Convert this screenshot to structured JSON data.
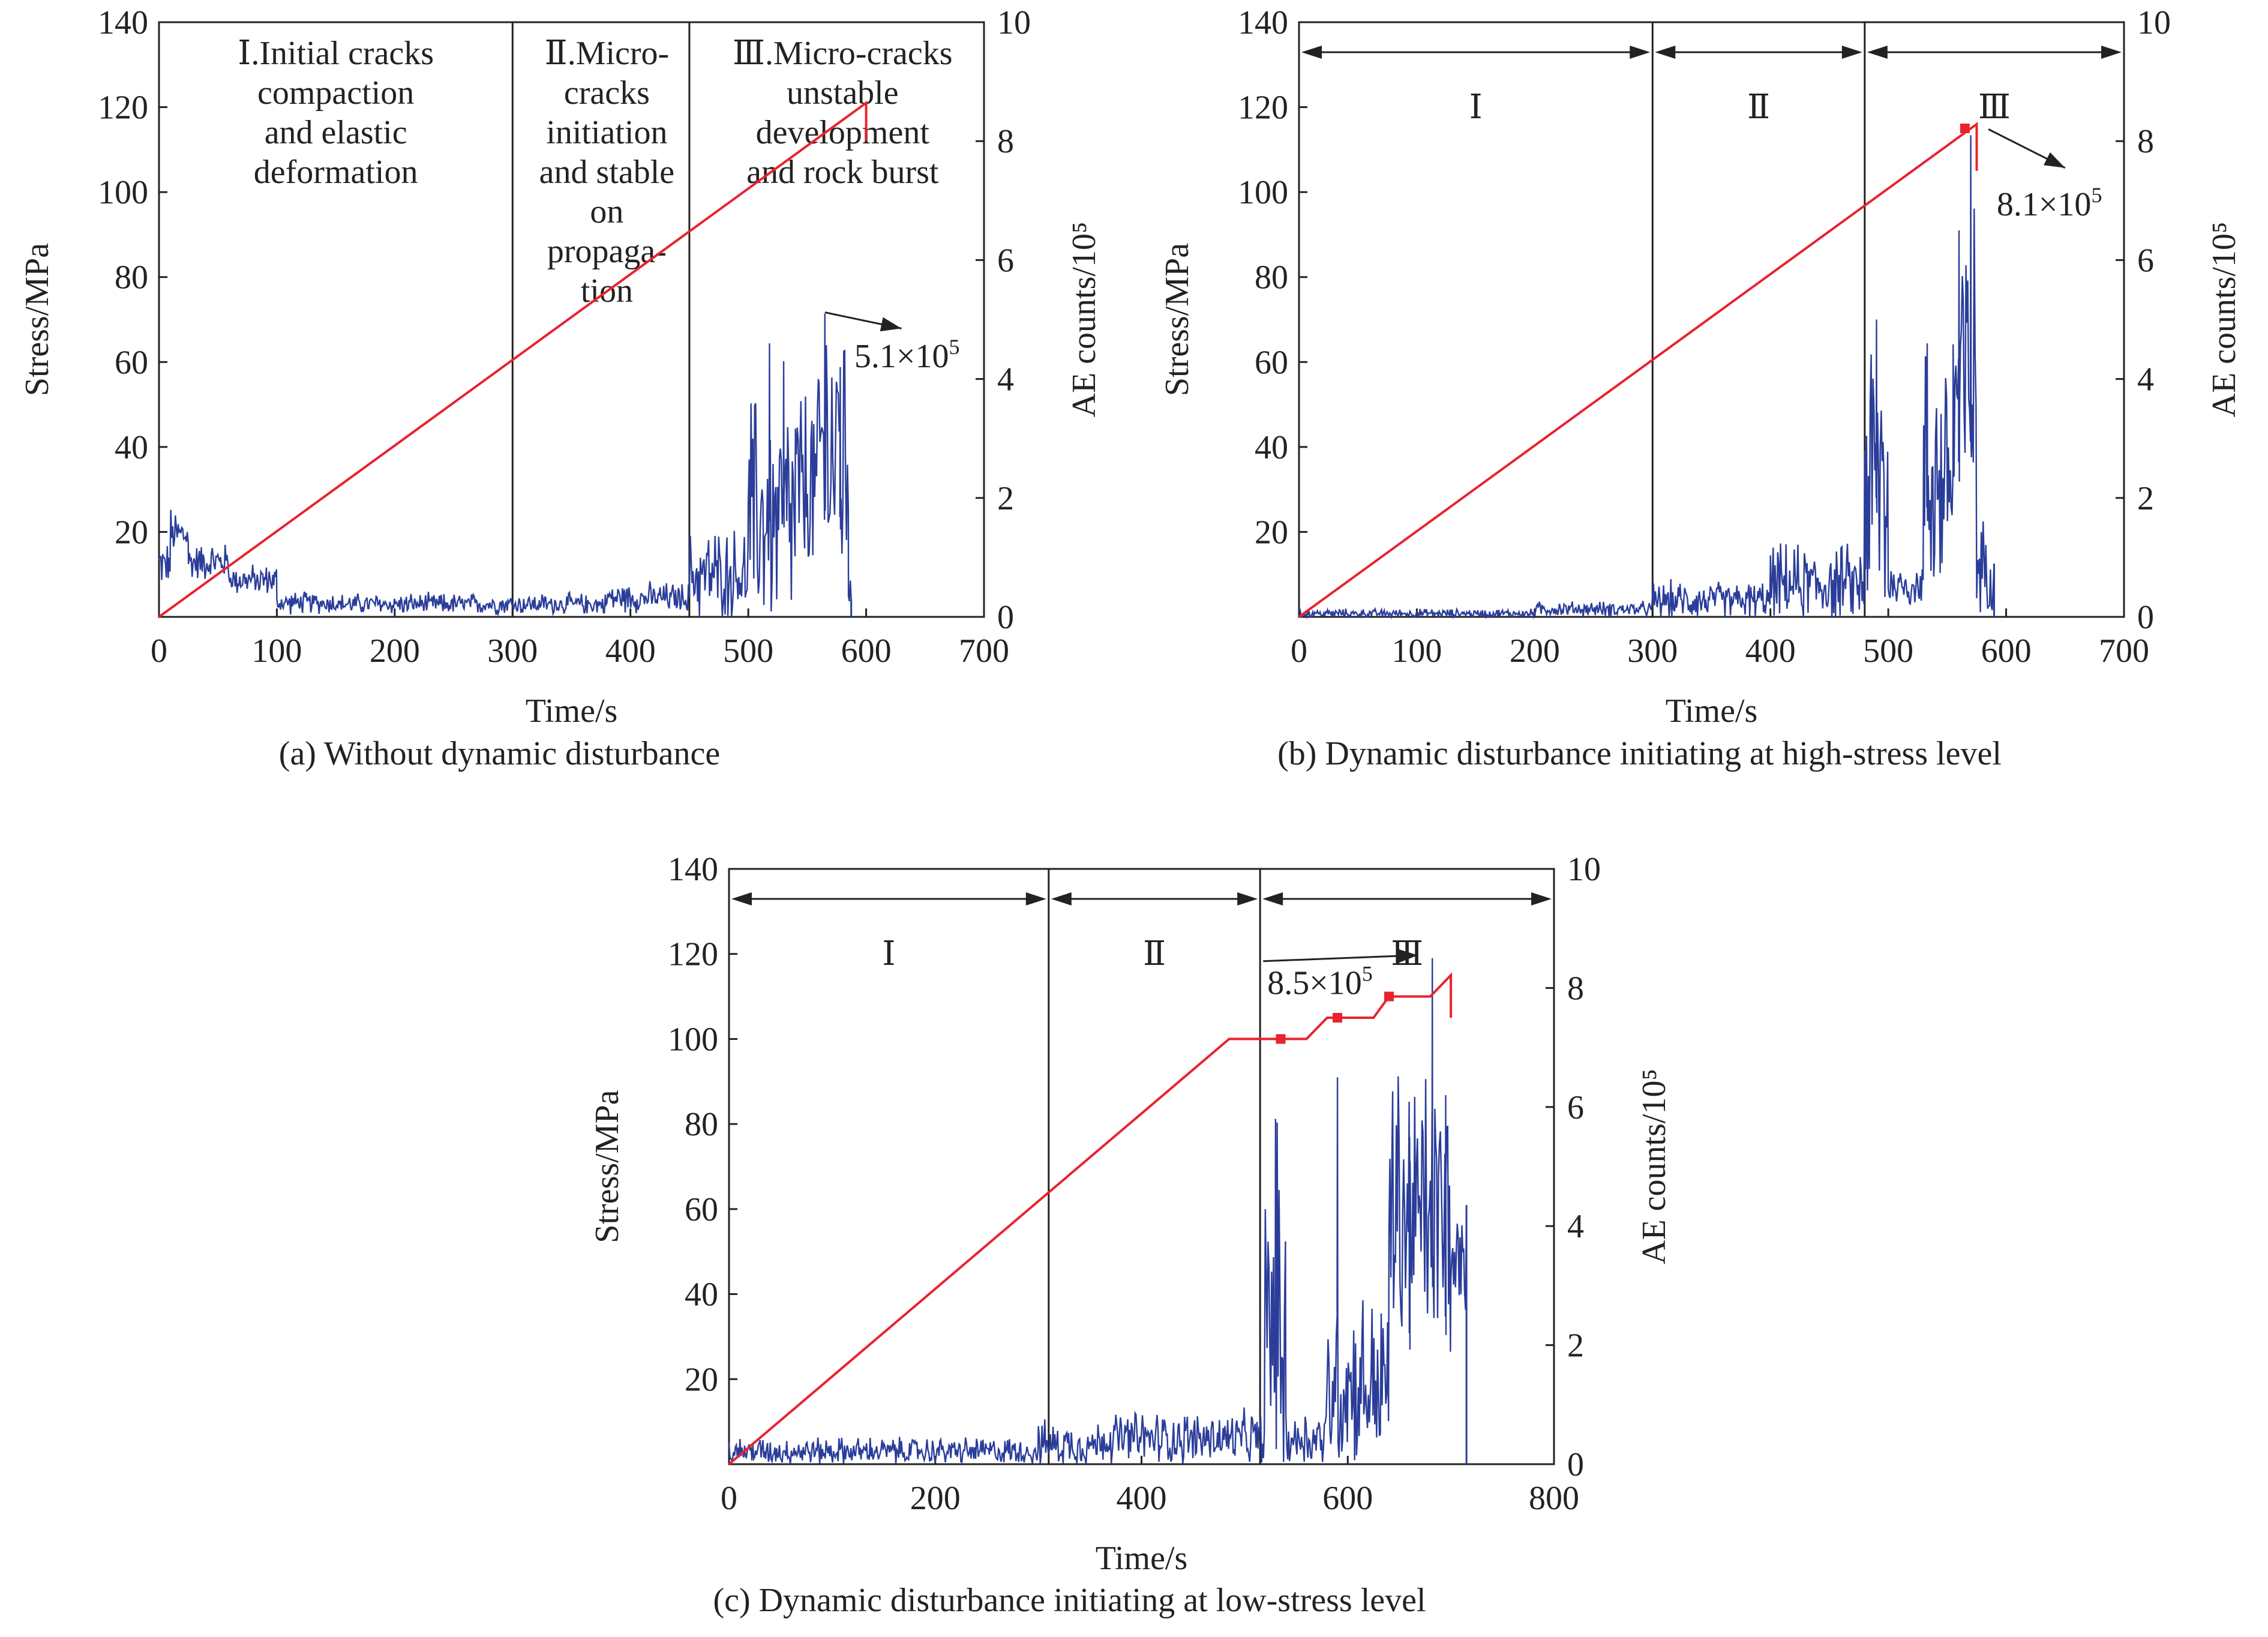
{
  "chart_data": [
    {
      "id": "a",
      "type": "line",
      "caption": "(a) Without dynamic disturbance",
      "xlabel": "Time/s",
      "ylabel": "Stress/MPa",
      "y2label": "AE counts/10⁵",
      "xlim": [
        0,
        700
      ],
      "ylim": [
        0,
        140
      ],
      "y2lim": [
        0,
        10
      ],
      "xticks": [
        "0",
        "100",
        "200",
        "300",
        "400",
        "500",
        "600",
        "700"
      ],
      "yticks": [
        "20",
        "40",
        "60",
        "80",
        "100",
        "120",
        "140"
      ],
      "y2ticks": [
        "0",
        "2",
        "4",
        "6",
        "8",
        "10"
      ],
      "phase_style": "text",
      "boundaries": [
        300,
        450
      ],
      "phases": [
        {
          "lines": [
            "Ⅰ.Initial cracks",
            "compaction",
            "and elastic",
            "deformation"
          ],
          "xc": 150
        },
        {
          "lines": [
            "Ⅱ.Micro-",
            "cracks",
            "initiation",
            "and stable",
            "on",
            "propaga-",
            "tion"
          ],
          "xc": 380
        },
        {
          "lines": [
            "Ⅲ.Micro-cracks",
            "unstable",
            "development",
            "and rock burst"
          ],
          "xc": 580
        }
      ],
      "stress": {
        "x": [
          0,
          600,
          600
        ],
        "y": [
          0,
          121,
          112
        ]
      },
      "ae_segments": [
        {
          "x0": 0,
          "x1": 10,
          "base": 0.85,
          "amp": 0.3
        },
        {
          "x0": 10,
          "x1": 25,
          "base": 1.35,
          "amp": 0.35
        },
        {
          "x0": 25,
          "x1": 60,
          "base": 0.9,
          "amp": 0.25
        },
        {
          "x0": 60,
          "x1": 100,
          "base": 0.6,
          "amp": 0.2
        },
        {
          "x0": 100,
          "x1": 150,
          "base": 0.22,
          "amp": 0.15
        },
        {
          "x0": 150,
          "x1": 380,
          "base": 0.2,
          "amp": 0.14
        },
        {
          "x0": 380,
          "x1": 450,
          "base": 0.3,
          "amp": 0.2
        },
        {
          "x0": 450,
          "x1": 500,
          "base": 0.65,
          "amp": 0.6
        },
        {
          "x0": 500,
          "x1": 540,
          "base": 1.5,
          "amp": 1.6
        },
        {
          "x0": 540,
          "x1": 560,
          "base": 2.0,
          "amp": 1.4
        },
        {
          "x0": 560,
          "x1": 585,
          "base": 2.6,
          "amp": 2.2
        },
        {
          "x0": 585,
          "x1": 588,
          "base": 0.4,
          "amp": 0.3
        }
      ],
      "ae_peaks": [
        [
          518,
          4.6
        ],
        [
          530,
          4.3
        ],
        [
          565,
          5.1
        ],
        [
          578,
          4.2
        ]
      ],
      "annotation": {
        "text": "5.1×10",
        "sup": "5",
        "value": 5.1
      }
    },
    {
      "id": "b",
      "type": "line",
      "caption": "(b) Dynamic disturbance initiating at high-stress level",
      "xlabel": "Time/s",
      "ylabel": "Stress/MPa",
      "y2label": "AE counts/10⁵",
      "xlim": [
        0,
        700
      ],
      "ylim": [
        0,
        140
      ],
      "y2lim": [
        0,
        10
      ],
      "xticks": [
        "0",
        "100",
        "200",
        "300",
        "400",
        "500",
        "600",
        "700"
      ],
      "yticks": [
        "20",
        "40",
        "60",
        "80",
        "100",
        "120",
        "140"
      ],
      "y2ticks": [
        "0",
        "2",
        "4",
        "6",
        "8",
        "10"
      ],
      "phase_style": "arrows",
      "boundaries": [
        300,
        480
      ],
      "phases": [
        {
          "lines": [
            "Ⅰ"
          ],
          "xc": 150
        },
        {
          "lines": [
            "Ⅱ"
          ],
          "xc": 390
        },
        {
          "lines": [
            "Ⅲ"
          ],
          "xc": 590
        }
      ],
      "stress": {
        "x": [
          0,
          575,
          575
        ],
        "y": [
          0,
          116,
          105
        ]
      },
      "stress_markers": [
        [
          565,
          115
        ]
      ],
      "ae_segments": [
        {
          "x0": 0,
          "x1": 200,
          "base": 0.05,
          "amp": 0.06
        },
        {
          "x0": 200,
          "x1": 300,
          "base": 0.12,
          "amp": 0.1
        },
        {
          "x0": 300,
          "x1": 400,
          "base": 0.25,
          "amp": 0.25
        },
        {
          "x0": 400,
          "x1": 480,
          "base": 0.5,
          "amp": 0.5
        },
        {
          "x0": 480,
          "x1": 500,
          "base": 2.0,
          "amp": 2.2
        },
        {
          "x0": 500,
          "x1": 530,
          "base": 0.5,
          "amp": 0.3
        },
        {
          "x0": 530,
          "x1": 555,
          "base": 2.2,
          "amp": 1.8
        },
        {
          "x0": 555,
          "x1": 575,
          "base": 3.5,
          "amp": 2.5
        },
        {
          "x0": 575,
          "x1": 590,
          "base": 0.8,
          "amp": 0.6
        }
      ],
      "ae_peaks": [
        [
          490,
          5.0
        ],
        [
          533,
          4.6
        ],
        [
          560,
          6.5
        ],
        [
          570,
          8.1
        ]
      ],
      "annotation": {
        "text": "8.1×10",
        "sup": "5",
        "value": 8.1
      }
    },
    {
      "id": "c",
      "type": "line",
      "caption": "(c) Dynamic disturbance initiating at low-stress level",
      "xlabel": "Time/s",
      "ylabel": "Stress/MPa",
      "y2label": "AE counts/10⁵",
      "xlim": [
        0,
        800
      ],
      "ylim": [
        0,
        140
      ],
      "y2lim": [
        0,
        10
      ],
      "xticks": [
        "0",
        "200",
        "400",
        "600",
        "800"
      ],
      "yticks": [
        "20",
        "40",
        "60",
        "80",
        "100",
        "120",
        "140"
      ],
      "y2ticks": [
        "0",
        "2",
        "4",
        "6",
        "8",
        "10"
      ],
      "phase_style": "arrows",
      "boundaries": [
        310,
        515
      ],
      "phases": [
        {
          "lines": [
            "Ⅰ"
          ],
          "xc": 155
        },
        {
          "lines": [
            "Ⅱ"
          ],
          "xc": 410
        },
        {
          "lines": [
            "Ⅲ"
          ],
          "xc": 660
        }
      ],
      "stress": {
        "x": [
          0,
          485,
          560,
          580,
          625,
          640,
          680,
          700,
          700
        ],
        "y": [
          0,
          100,
          100,
          105,
          105,
          110,
          110,
          115,
          105
        ]
      },
      "stress_markers": [
        [
          535,
          100
        ],
        [
          590,
          105
        ],
        [
          640,
          110
        ]
      ],
      "ae_segments": [
        {
          "x0": 0,
          "x1": 300,
          "base": 0.2,
          "amp": 0.18
        },
        {
          "x0": 300,
          "x1": 360,
          "base": 0.3,
          "amp": 0.3
        },
        {
          "x0": 360,
          "x1": 520,
          "base": 0.4,
          "amp": 0.35
        },
        {
          "x0": 520,
          "x1": 540,
          "base": 2.0,
          "amp": 2.5
        },
        {
          "x0": 540,
          "x1": 580,
          "base": 0.4,
          "amp": 0.4
        },
        {
          "x0": 580,
          "x1": 640,
          "base": 1.2,
          "amp": 1.2
        },
        {
          "x0": 640,
          "x1": 700,
          "base": 4.0,
          "amp": 2.0
        },
        {
          "x0": 700,
          "x1": 716,
          "base": 3.2,
          "amp": 0.8
        }
      ],
      "ae_peaks": [
        [
          530,
          5.8
        ],
        [
          590,
          6.5
        ],
        [
          660,
          5.5
        ],
        [
          682,
          8.5
        ],
        [
          695,
          6.2
        ]
      ],
      "annotation": {
        "text": "8.5×10",
        "sup": "5",
        "value": 8.5
      }
    }
  ],
  "colors": {
    "stress": "#e8232e",
    "ae": "#2a3d9a",
    "ae_alt": "#2c8f7a",
    "axis": "#222222"
  }
}
